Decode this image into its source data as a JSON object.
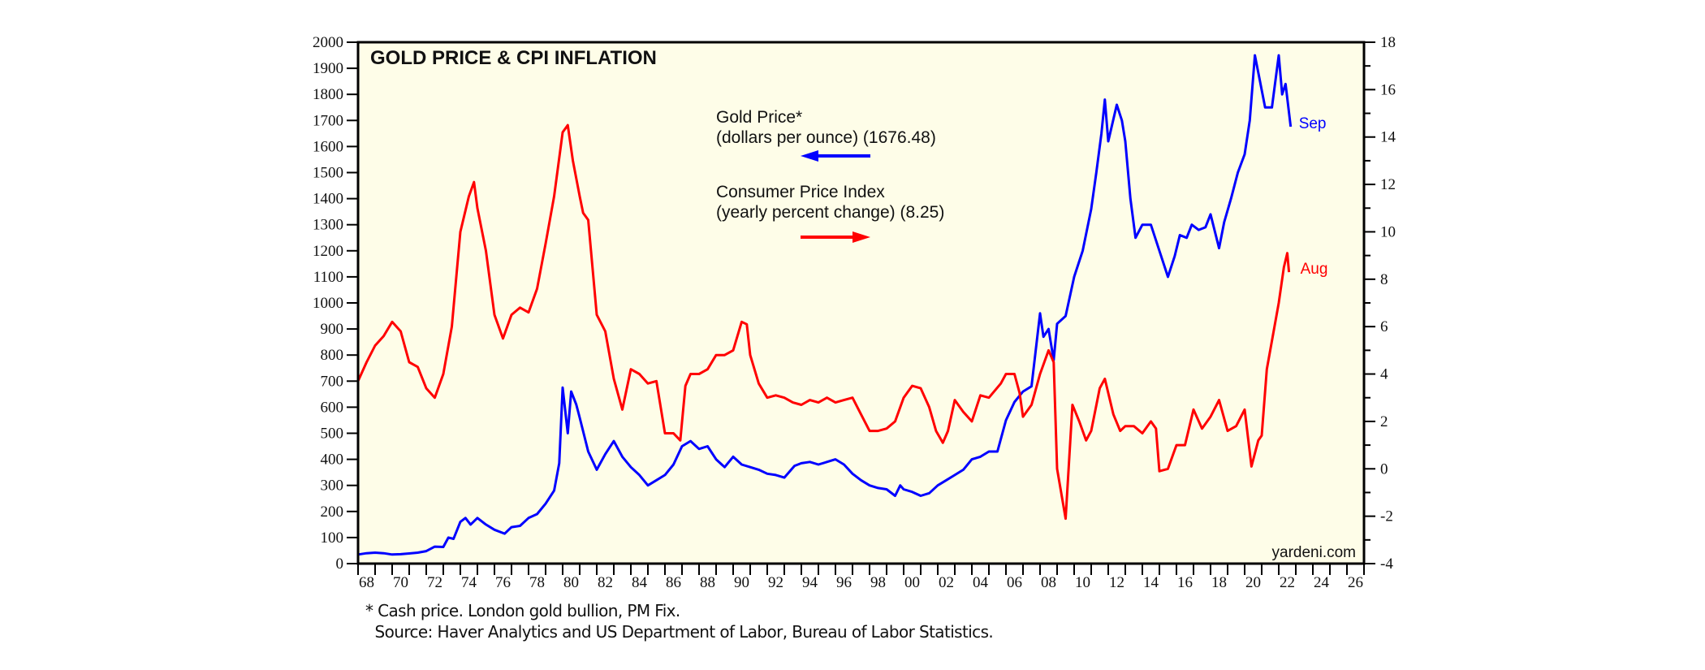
{
  "chart_data": {
    "type": "line",
    "title": "GOLD PRICE & CPI INFLATION",
    "xlabel": "",
    "xlim": [
      1968,
      2027
    ],
    "x_tick_labels": [
      "68",
      "70",
      "72",
      "74",
      "76",
      "78",
      "80",
      "82",
      "84",
      "86",
      "88",
      "90",
      "92",
      "94",
      "96",
      "98",
      "00",
      "02",
      "04",
      "06",
      "08",
      "10",
      "12",
      "14",
      "16",
      "18",
      "20",
      "22",
      "24",
      "26"
    ],
    "y_left": {
      "label": "Gold Price (dollars per ounce)",
      "lim": [
        0,
        2000
      ],
      "ticks": [
        0,
        100,
        200,
        300,
        400,
        500,
        600,
        700,
        800,
        900,
        1000,
        1100,
        1200,
        1300,
        1400,
        1500,
        1600,
        1700,
        1800,
        1900,
        2000
      ]
    },
    "y_right": {
      "label": "CPI (yearly percent change)",
      "lim": [
        -4,
        18
      ],
      "ticks": [
        -4,
        -2,
        0,
        2,
        4,
        6,
        8,
        10,
        12,
        14,
        16,
        18
      ]
    },
    "grid": false,
    "legend": [
      {
        "line1": "Gold Price*",
        "line2": "(dollars per ounce) (1676.48)",
        "axis": "left",
        "arrow": "left",
        "color": "#0000ff"
      },
      {
        "line1": "Consumer Price Index",
        "line2": "(yearly percent change) (8.25)",
        "axis": "right",
        "arrow": "right",
        "color": "#ff0000"
      }
    ],
    "legend_placement": "top-center",
    "series": [
      {
        "name": "Gold Price",
        "axis": "left",
        "color": "#0000ff",
        "end_label": "Sep",
        "x": [
          1968.0,
          1968.5,
          1969.0,
          1969.5,
          1970.0,
          1970.5,
          1971.0,
          1971.5,
          1972.0,
          1972.5,
          1973.0,
          1973.3,
          1973.6,
          1974.0,
          1974.3,
          1974.6,
          1975.0,
          1975.5,
          1976.0,
          1976.6,
          1977.0,
          1977.5,
          1978.0,
          1978.5,
          1979.0,
          1979.5,
          1979.8,
          1980.0,
          1980.3,
          1980.5,
          1980.8,
          1981.0,
          1981.5,
          1982.0,
          1982.5,
          1983.0,
          1983.5,
          1984.0,
          1984.5,
          1985.0,
          1985.5,
          1986.0,
          1986.5,
          1987.0,
          1987.5,
          1988.0,
          1988.5,
          1989.0,
          1989.5,
          1990.0,
          1990.5,
          1991.0,
          1991.5,
          1992.0,
          1992.5,
          1993.0,
          1993.6,
          1994.0,
          1994.5,
          1995.0,
          1995.5,
          1996.0,
          1996.5,
          1997.0,
          1997.5,
          1998.0,
          1998.5,
          1999.0,
          1999.5,
          1999.8,
          2000.0,
          2000.5,
          2001.0,
          2001.5,
          2002.0,
          2002.5,
          2003.0,
          2003.5,
          2004.0,
          2004.5,
          2005.0,
          2005.5,
          2006.0,
          2006.5,
          2007.0,
          2007.5,
          2008.0,
          2008.2,
          2008.5,
          2008.8,
          2009.0,
          2009.5,
          2010.0,
          2010.5,
          2011.0,
          2011.3,
          2011.6,
          2011.8,
          2012.0,
          2012.5,
          2012.8,
          2013.0,
          2013.3,
          2013.6,
          2014.0,
          2014.5,
          2015.0,
          2015.5,
          2015.9,
          2016.2,
          2016.6,
          2016.9,
          2017.3,
          2017.7,
          2018.0,
          2018.5,
          2018.8,
          2019.2,
          2019.6,
          2020.0,
          2020.3,
          2020.6,
          2020.9,
          2021.2,
          2021.6,
          2022.0,
          2022.2,
          2022.4,
          2022.7
        ],
        "values": [
          35,
          40,
          42,
          40,
          35,
          36,
          39,
          42,
          48,
          65,
          64,
          100,
          95,
          160,
          175,
          150,
          175,
          150,
          130,
          115,
          140,
          145,
          175,
          190,
          230,
          280,
          385,
          675,
          500,
          660,
          610,
          560,
          430,
          360,
          420,
          470,
          410,
          370,
          340,
          300,
          320,
          340,
          380,
          450,
          470,
          440,
          450,
          400,
          370,
          410,
          380,
          370,
          360,
          345,
          340,
          330,
          375,
          385,
          390,
          380,
          390,
          400,
          380,
          345,
          320,
          300,
          290,
          285,
          260,
          300,
          285,
          275,
          260,
          270,
          300,
          320,
          340,
          360,
          400,
          410,
          430,
          430,
          550,
          620,
          660,
          680,
          960,
          870,
          900,
          780,
          920,
          950,
          1100,
          1200,
          1360,
          1500,
          1650,
          1780,
          1620,
          1760,
          1700,
          1620,
          1400,
          1250,
          1300,
          1300,
          1200,
          1100,
          1180,
          1260,
          1250,
          1300,
          1280,
          1290,
          1340,
          1210,
          1310,
          1400,
          1500,
          1570,
          1700,
          1950,
          1850,
          1750,
          1750,
          1950,
          1800,
          1840,
          1676
        ]
      },
      {
        "name": "Consumer Price Index",
        "axis": "right",
        "color": "#ff0000",
        "end_label": "Aug",
        "x": [
          1968.0,
          1968.5,
          1969.0,
          1969.5,
          1970.0,
          1970.5,
          1971.0,
          1971.5,
          1972.0,
          1972.5,
          1973.0,
          1973.5,
          1974.0,
          1974.5,
          1974.8,
          1975.0,
          1975.5,
          1976.0,
          1976.5,
          1977.0,
          1977.5,
          1978.0,
          1978.5,
          1979.0,
          1979.5,
          1980.0,
          1980.3,
          1980.6,
          1981.0,
          1981.2,
          1981.5,
          1982.0,
          1982.5,
          1983.0,
          1983.5,
          1984.0,
          1984.5,
          1985.0,
          1985.5,
          1986.0,
          1986.5,
          1986.9,
          1987.2,
          1987.5,
          1988.0,
          1988.5,
          1989.0,
          1989.5,
          1990.0,
          1990.5,
          1990.8,
          1991.0,
          1991.5,
          1992.0,
          1992.5,
          1993.0,
          1993.5,
          1994.0,
          1994.5,
          1995.0,
          1995.5,
          1996.0,
          1996.5,
          1997.0,
          1997.5,
          1998.0,
          1998.5,
          1999.0,
          1999.5,
          2000.0,
          2000.5,
          2001.0,
          2001.5,
          2001.9,
          2002.3,
          2002.6,
          2003.0,
          2003.5,
          2004.0,
          2004.5,
          2005.0,
          2005.7,
          2006.0,
          2006.5,
          2006.8,
          2007.0,
          2007.5,
          2008.0,
          2008.5,
          2008.8,
          2009.0,
          2009.5,
          2009.9,
          2010.3,
          2010.7,
          2011.0,
          2011.5,
          2011.8,
          2012.3,
          2012.7,
          2013.0,
          2013.5,
          2014.0,
          2014.5,
          2014.8,
          2015.0,
          2015.5,
          2016.0,
          2016.5,
          2017.0,
          2017.5,
          2018.0,
          2018.5,
          2019.0,
          2019.5,
          2020.0,
          2020.4,
          2020.8,
          2021.0,
          2021.3,
          2021.6,
          2022.0,
          2022.3,
          2022.5,
          2022.6
        ],
        "values": [
          3.7,
          4.5,
          5.2,
          5.6,
          6.2,
          5.8,
          4.5,
          4.3,
          3.4,
          3.0,
          4.0,
          6.0,
          10.0,
          11.5,
          12.1,
          11.0,
          9.2,
          6.5,
          5.5,
          6.5,
          6.8,
          6.6,
          7.6,
          9.5,
          11.5,
          14.2,
          14.5,
          13.0,
          11.5,
          10.8,
          10.5,
          6.5,
          5.8,
          3.8,
          2.5,
          4.2,
          4.0,
          3.6,
          3.7,
          1.5,
          1.5,
          1.2,
          3.5,
          4.0,
          4.0,
          4.2,
          4.8,
          4.8,
          5.0,
          6.2,
          6.1,
          4.8,
          3.6,
          3.0,
          3.1,
          3.0,
          2.8,
          2.7,
          2.9,
          2.8,
          3.0,
          2.8,
          2.9,
          3.0,
          2.3,
          1.6,
          1.6,
          1.7,
          2.0,
          3.0,
          3.5,
          3.4,
          2.6,
          1.6,
          1.1,
          1.6,
          2.9,
          2.4,
          2.0,
          3.1,
          3.0,
          3.6,
          4.0,
          4.0,
          3.2,
          2.2,
          2.7,
          4.0,
          5.0,
          4.5,
          0.0,
          -2.1,
          2.7,
          2.0,
          1.2,
          1.6,
          3.4,
          3.8,
          2.3,
          1.6,
          1.8,
          1.8,
          1.5,
          2.0,
          1.7,
          -0.1,
          0.0,
          1.0,
          1.0,
          2.5,
          1.7,
          2.2,
          2.9,
          1.6,
          1.8,
          2.5,
          0.1,
          1.2,
          1.4,
          4.2,
          5.4,
          7.0,
          8.5,
          9.1,
          8.3
        ]
      }
    ],
    "watermark": "yardeni.com",
    "footnote_lines": [
      "* Cash price. London gold bullion, PM Fix.",
      "  Source: Haver Analytics and US Department of Labor, Bureau of Labor Statistics."
    ]
  }
}
